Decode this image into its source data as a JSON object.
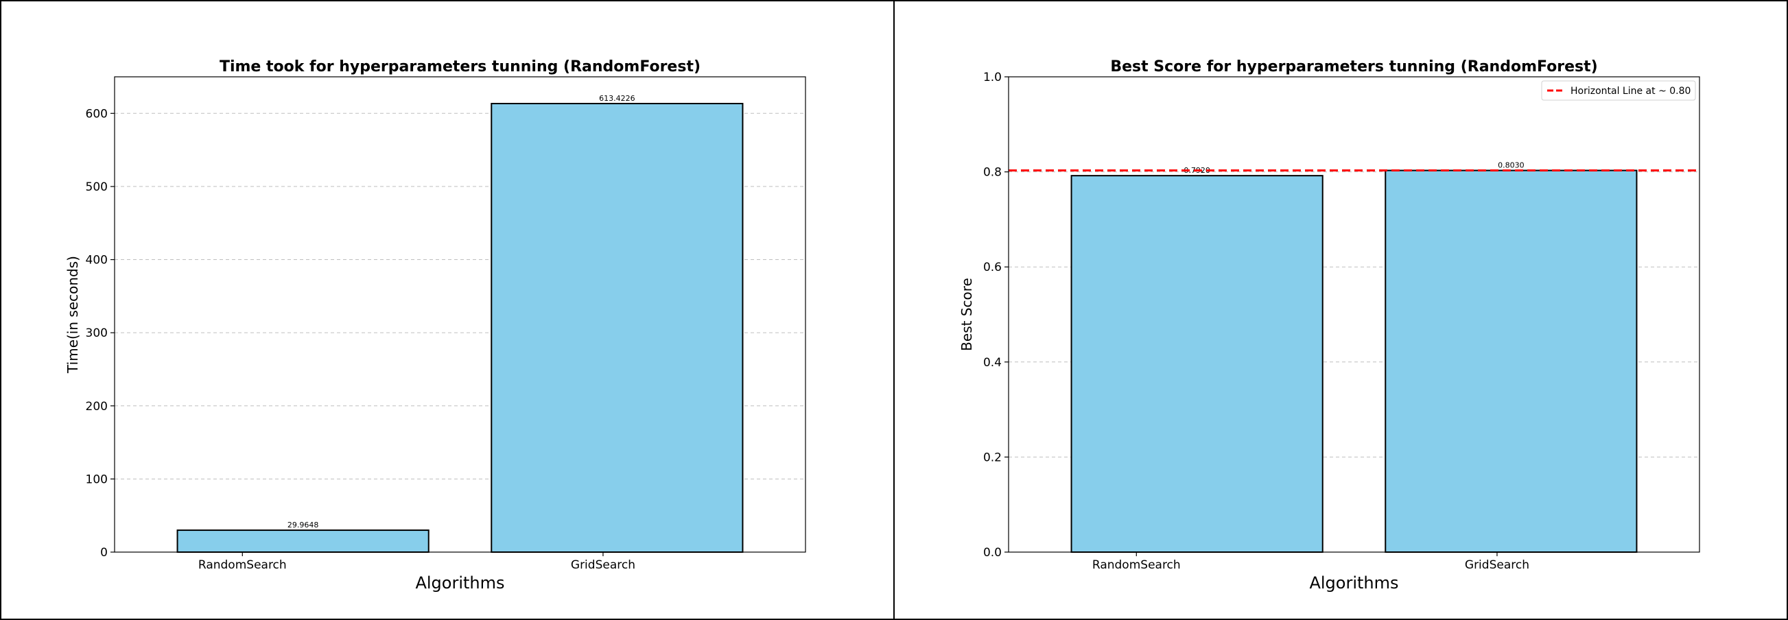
{
  "chart_data": [
    {
      "type": "bar",
      "title": "Time took for hyperparameters tunning (RandomForest)",
      "xlabel": "Algorithms",
      "ylabel": "Time(in seconds)",
      "categories": [
        "RandomSearch",
        "GridSearch"
      ],
      "values": [
        29.9648,
        613.4226
      ],
      "value_labels": [
        "29.9648",
        "613.4226"
      ],
      "ylim": [
        0,
        650
      ],
      "yticks": [
        0,
        100,
        200,
        300,
        400,
        500,
        600
      ],
      "ytick_labels": [
        "0",
        "100",
        "200",
        "300",
        "400",
        "500",
        "600"
      ],
      "grid": "y-dashed",
      "bar_color": "#87ceeb",
      "bar_edge_color": "#000000"
    },
    {
      "type": "bar",
      "title": "Best Score for hyperparameters tunning (RandomForest)",
      "xlabel": "Algorithms",
      "ylabel": "Best Score",
      "categories": [
        "RandomSearch",
        "GridSearch"
      ],
      "values": [
        0.792,
        0.803
      ],
      "value_labels": [
        "0.7920",
        "0.8030"
      ],
      "ylim": [
        0,
        1.0
      ],
      "yticks": [
        0.0,
        0.2,
        0.4,
        0.6,
        0.8,
        1.0
      ],
      "ytick_labels": [
        "0.0",
        "0.2",
        "0.4",
        "0.6",
        "0.8",
        "1.0"
      ],
      "grid": "y-dashed",
      "bar_color": "#87ceeb",
      "bar_edge_color": "#000000",
      "hline": {
        "y": 0.803,
        "color": "#ff0000",
        "style": "dashed",
        "label": "Horizontal Line at ~ 0.80"
      },
      "legend_position": "top-right"
    }
  ]
}
